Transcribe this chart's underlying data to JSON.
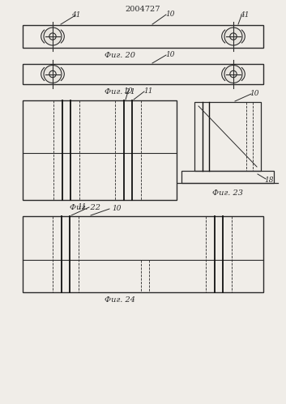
{
  "patent_number": "2004727",
  "bg_color": "#f0ede8",
  "line_color": "#2a2a2a",
  "fig20_label": "Фиг. 20",
  "fig21_label": "Фиг. 21",
  "fig22_label": "Фиг. 22",
  "fig23_label": "Фиг. 23",
  "fig24_label": "Фиг. 24",
  "label_10": "10",
  "label_11": "11",
  "label_41": "41",
  "label_18": "18"
}
